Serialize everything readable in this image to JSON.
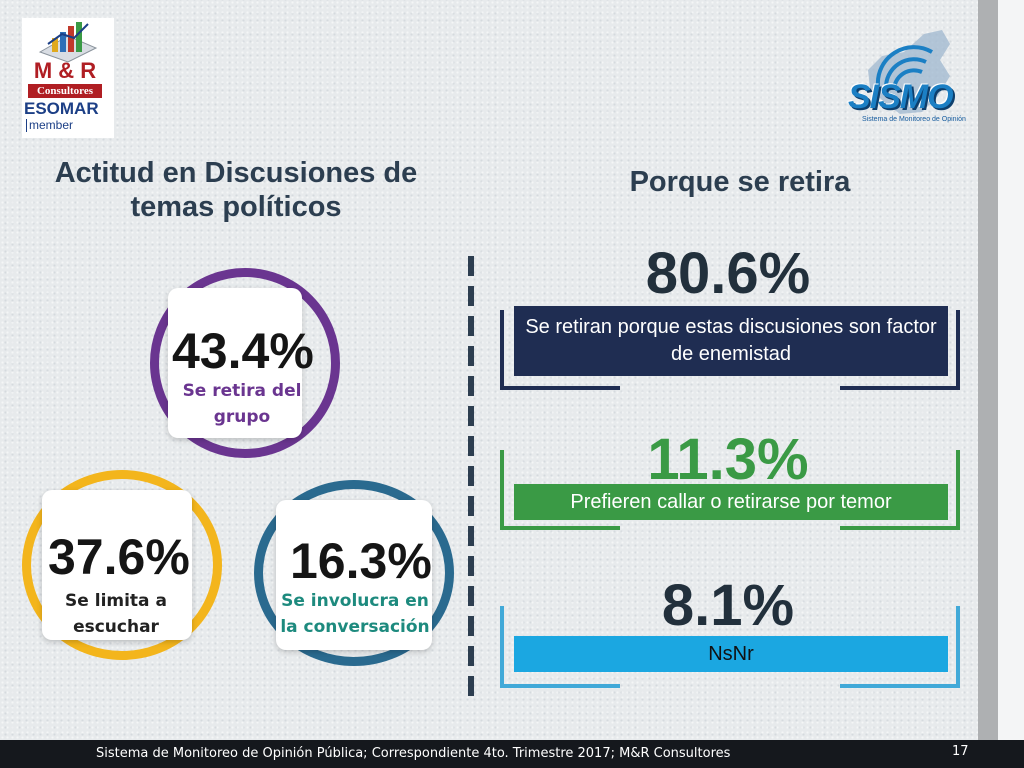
{
  "logos": {
    "mr_text": "M & R",
    "consultores_text": "Consultores",
    "esomar_text": "ESOMAR",
    "member_text": "member",
    "sismo_text": "SISMO",
    "sismo_subtitle": "Sistema de Monitoreo de Opinión"
  },
  "left": {
    "title": "Actitud en Discusiones de temas políticos",
    "circles": [
      {
        "percent": "43.4%",
        "label": "Se retira del grupo",
        "color": "#6a3590"
      },
      {
        "percent": "37.6%",
        "label": "Se limita a escuchar",
        "color": "#f3b51c"
      },
      {
        "percent": "16.3%",
        "label": "Se involucra en la conversación",
        "color": "#2a6a8f"
      }
    ]
  },
  "right": {
    "title": "Porque se retira",
    "items": [
      {
        "percent": "80.6%",
        "label": "Se retiran porque estas discusiones son factor de enemistad",
        "color": "#1f2d52"
      },
      {
        "percent": "11.3%",
        "label": "Prefieren callar o retirarse por temor",
        "color": "#3a9a45"
      },
      {
        "percent": "8.1%",
        "label": "NsNr",
        "color": "#1ba7e1"
      }
    ]
  },
  "footer": {
    "text": "Sistema de Monitoreo de Opinión Pública; Correspondiente 4to. Trimestre 2017; M&R Consultores",
    "page": "17"
  }
}
